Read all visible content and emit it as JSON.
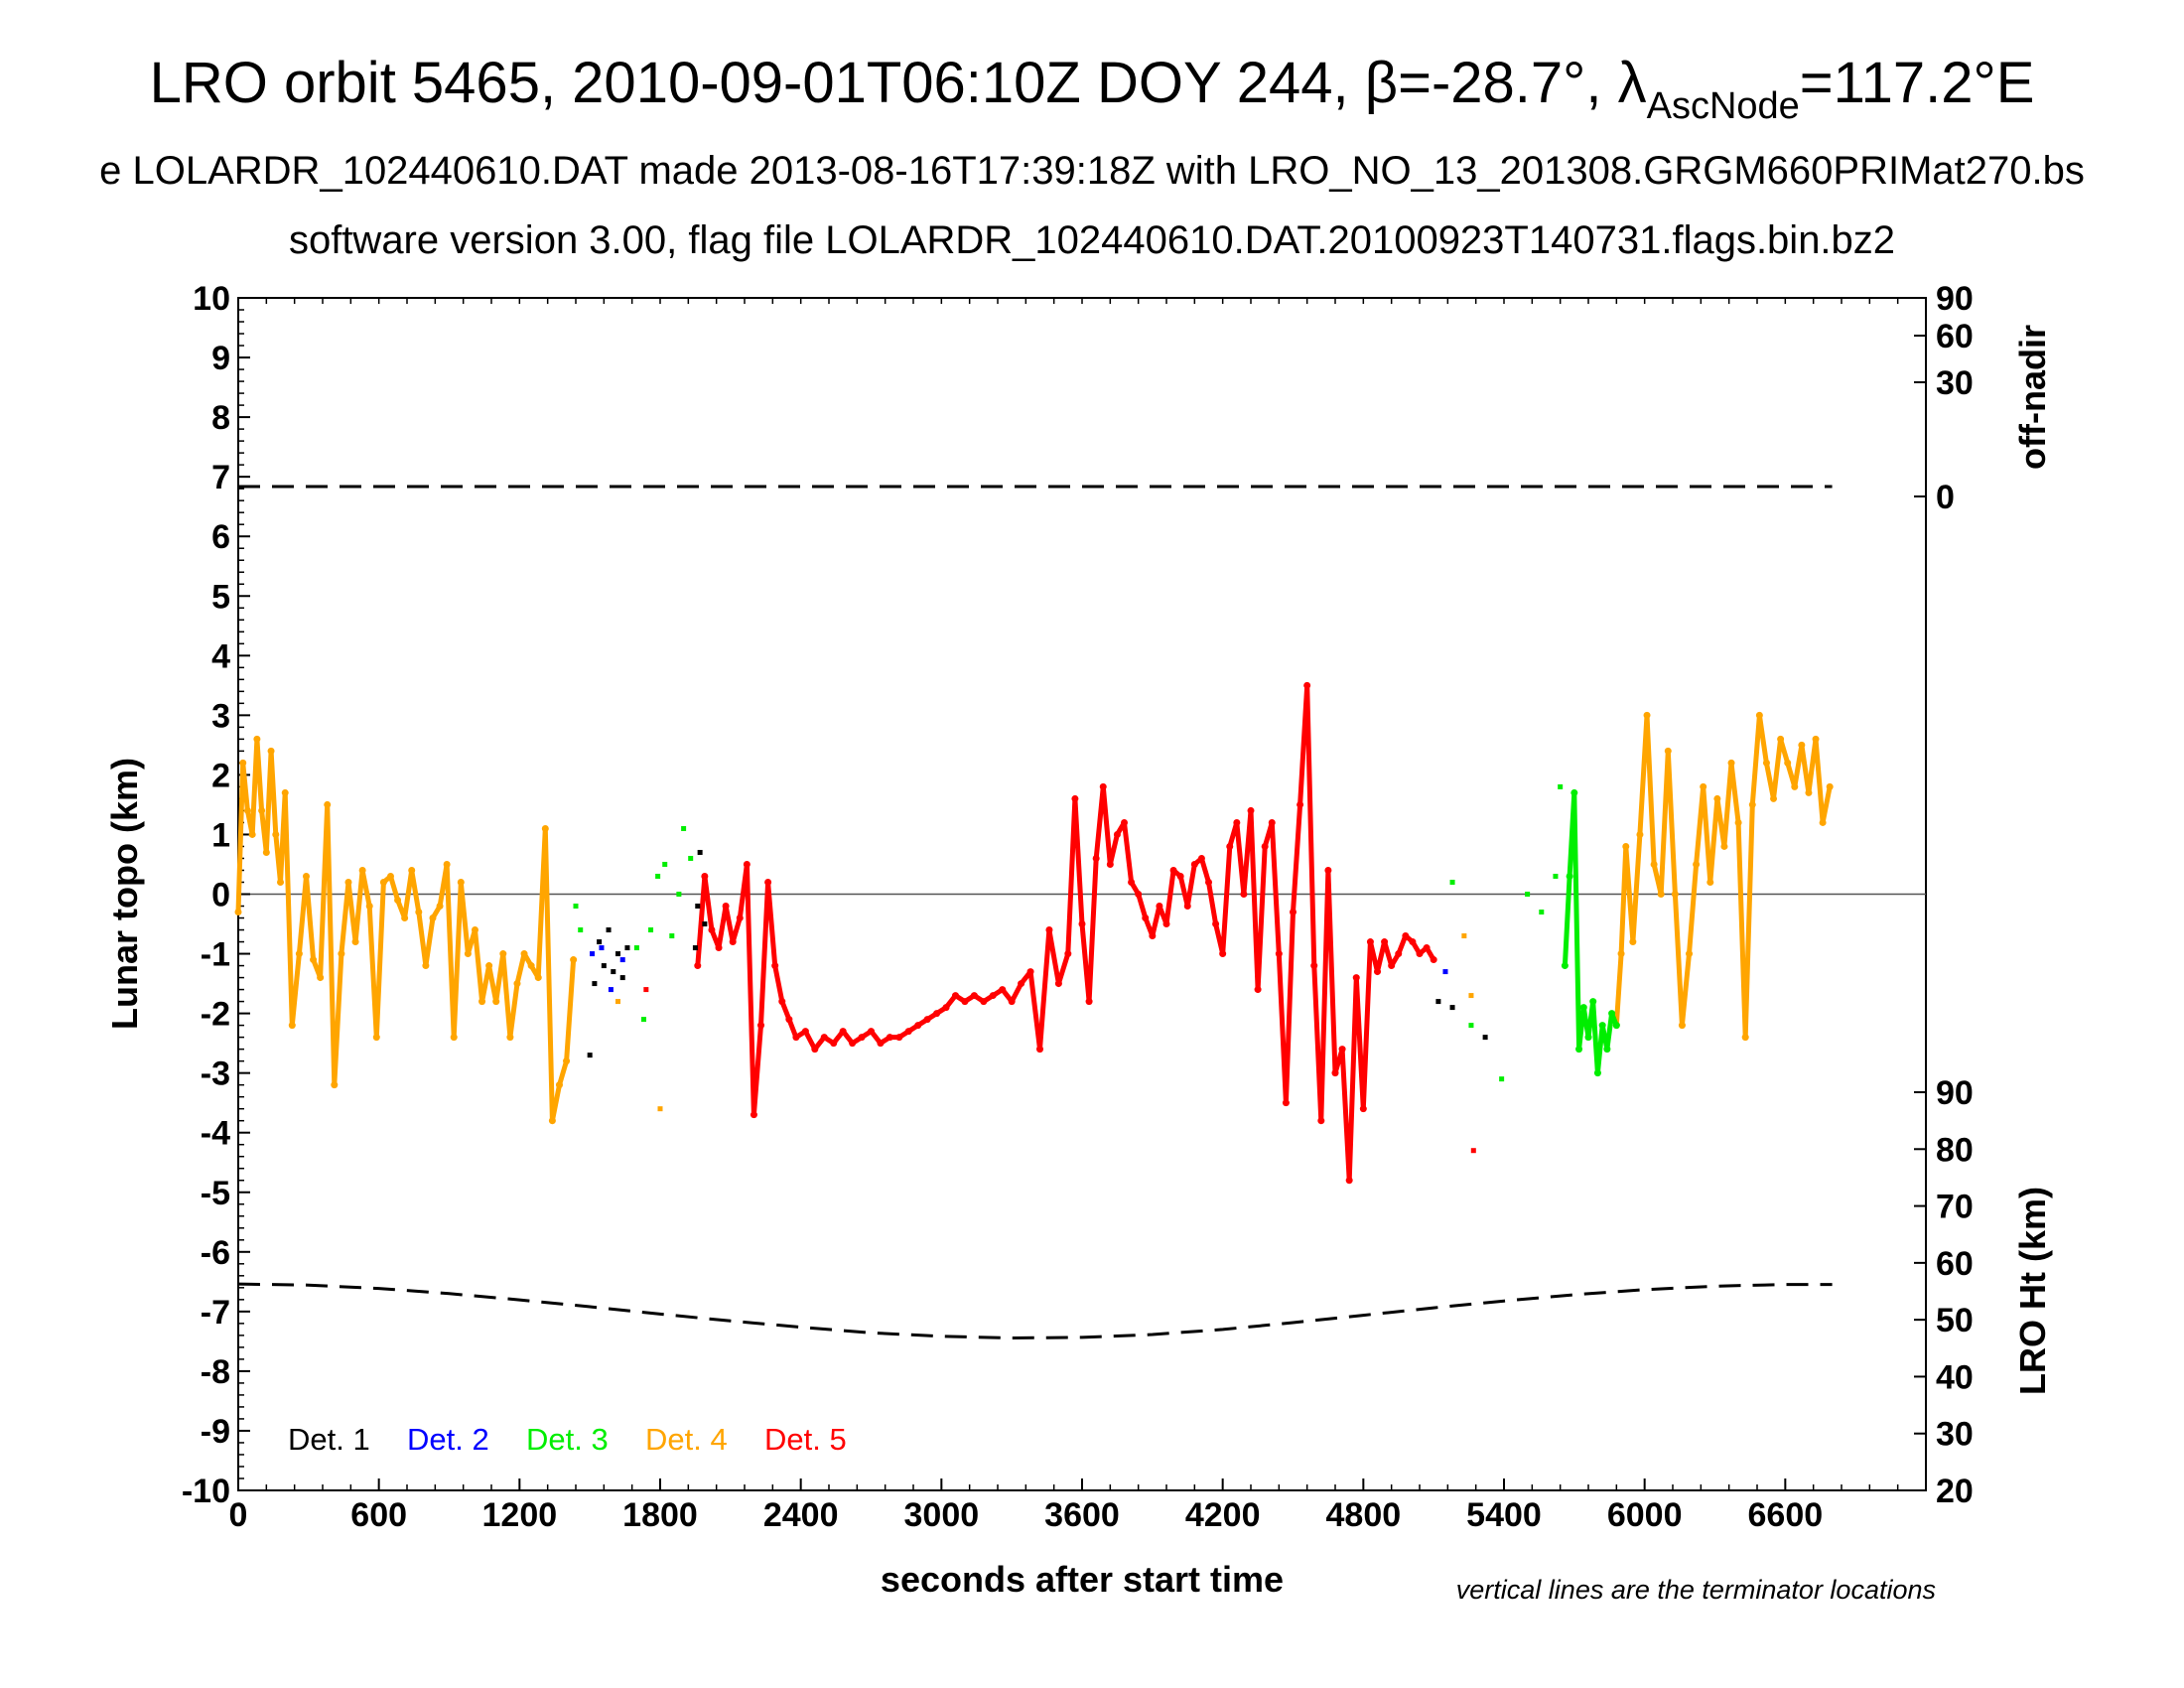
{
  "chart_data": {
    "type": "scatter",
    "title": {
      "main": "LRO orbit 5465, 2010-09-01T06:10Z DOY 244, β=-28.7°, λ",
      "lambda_subscript": "AscNode",
      "lambda_value": "=117.2°E"
    },
    "subtitle_line1": "e LOLARDR_102440610.DAT made 2013-08-16T17:39:18Z with LRO_NO_13_201308.GRGM660PRIMat270.bs",
    "subtitle_line2": "software version 3.00, flag file LOLARDR_102440610.DAT.20100923T140731.flags.bin.bz2",
    "xlabel": "seconds after start time",
    "ylabel": "Lunar topo (km)",
    "y2label_top": "off-nadir",
    "y2label_bottom": "LRO Ht (km)",
    "note": "vertical lines are the terminator locations",
    "xlim": [
      0,
      7200
    ],
    "ylim": [
      -10,
      10
    ],
    "x_ticks": [
      "0",
      "600",
      "1200",
      "1800",
      "2400",
      "3000",
      "3600",
      "4200",
      "4800",
      "5400",
      "6000",
      "6600"
    ],
    "y_ticks": [
      "10",
      "9",
      "8",
      "7",
      "6",
      "5",
      "4",
      "3",
      "2",
      "1",
      "0",
      "-1",
      "-2",
      "-3",
      "-4",
      "-5",
      "-6",
      "-7",
      "-8",
      "-9",
      "-10"
    ],
    "offnadir_ticks": [
      "90",
      "60",
      "30",
      "0"
    ],
    "offnadir_tick_values": [
      90,
      60,
      30,
      0
    ],
    "height_ticks": [
      "90",
      "80",
      "70",
      "60",
      "50",
      "40",
      "30",
      "20"
    ],
    "height_lim": [
      20,
      90
    ],
    "legend_position": "bottom-left",
    "legend": [
      {
        "label": "Det. 1",
        "color": "#000000"
      },
      {
        "label": "Det. 2",
        "color": "#0000ff"
      },
      {
        "label": "Det. 3",
        "color": "#00ee00"
      },
      {
        "label": "Det. 4",
        "color": "#ffa500"
      },
      {
        "label": "Det. 5",
        "color": "#ff0000"
      }
    ],
    "offnadir_series": {
      "x": [
        0,
        6800
      ],
      "values_deg": [
        0,
        0
      ]
    },
    "lro_height_series": {
      "x": [
        0,
        300,
        600,
        900,
        1200,
        1500,
        1800,
        2100,
        2400,
        2700,
        3000,
        3300,
        3600,
        3900,
        4200,
        4500,
        4800,
        5100,
        5400,
        5700,
        6000,
        6300,
        6600,
        6800
      ],
      "values_km": [
        56.3,
        56.1,
        55.5,
        54.6,
        53.5,
        52.3,
        51.0,
        49.8,
        48.7,
        47.7,
        47.1,
        46.8,
        46.9,
        47.4,
        48.3,
        49.5,
        50.8,
        52.1,
        53.3,
        54.4,
        55.3,
        55.9,
        56.2,
        56.2
      ]
    },
    "topo_series": [
      {
        "name": "Det. 4",
        "color": "#ffa500",
        "segments": [
          {
            "x": [
              0,
              20,
              40,
              60,
              80,
              100,
              120,
              140,
              160,
              180,
              200,
              230,
              260,
              290,
              320,
              350,
              380,
              410,
              440,
              470,
              500,
              530,
              560,
              590,
              620,
              650,
              680,
              710,
              740,
              770,
              800,
              830,
              860,
              890,
              920,
              950,
              980,
              1010,
              1040,
              1070,
              1100,
              1130,
              1160,
              1190,
              1220,
              1250,
              1280,
              1310,
              1340,
              1370,
              1400,
              1430
            ],
            "y": [
              -0.3,
              2.2,
              1.4,
              1.0,
              2.6,
              1.4,
              0.7,
              2.4,
              1.0,
              0.2,
              1.7,
              -2.2,
              -1.0,
              0.3,
              -1.1,
              -1.4,
              1.5,
              -3.2,
              -1.0,
              0.2,
              -0.8,
              0.4,
              -0.2,
              -2.4,
              0.2,
              0.3,
              -0.1,
              -0.4,
              0.4,
              -0.3,
              -1.2,
              -0.4,
              -0.2,
              0.5,
              -2.4,
              0.2,
              -1.0,
              -0.6,
              -1.8,
              -1.2,
              -1.8,
              -1.0,
              -2.4,
              -1.5,
              -1.0,
              -1.2,
              -1.4,
              1.1,
              -3.8,
              -3.2,
              -2.8,
              -1.1
            ]
          },
          {
            "x": [
              5880,
              5900,
              5920,
              5950,
              5980,
              6010,
              6040,
              6070,
              6100,
              6130,
              6160,
              6190,
              6220,
              6250,
              6280,
              6310,
              6340,
              6370,
              6400,
              6430,
              6460,
              6490,
              6520,
              6550,
              6580,
              6610,
              6640,
              6670,
              6700,
              6730,
              6760,
              6790
            ],
            "y": [
              -2.2,
              -1.0,
              0.8,
              -0.8,
              1.0,
              3.0,
              0.5,
              0.0,
              2.4,
              0.0,
              -2.2,
              -1.0,
              0.5,
              1.8,
              0.2,
              1.6,
              0.8,
              2.2,
              1.2,
              -2.4,
              1.5,
              3.0,
              2.2,
              1.6,
              2.6,
              2.2,
              1.8,
              2.5,
              1.7,
              2.6,
              1.2,
              1.8
            ]
          }
        ]
      },
      {
        "name": "Det. 5",
        "color": "#ff0000",
        "segments": [
          {
            "x": [
              1960,
              1990,
              2020,
              2050,
              2080,
              2110,
              2140,
              2170,
              2200,
              2230,
              2260,
              2290,
              2320,
              2350,
              2380,
              2420,
              2460,
              2500,
              2540,
              2580,
              2620,
              2660,
              2700,
              2740,
              2780,
              2820,
              2860,
              2900,
              2940,
              2980,
              3020,
              3060,
              3100,
              3140,
              3180,
              3220,
              3260,
              3300,
              3340,
              3380,
              3420,
              3460,
              3500,
              3540,
              3570,
              3600,
              3630,
              3660,
              3690,
              3720,
              3750,
              3780,
              3810,
              3840,
              3870,
              3900,
              3930,
              3960,
              3990,
              4020,
              4050,
              4080,
              4110,
              4140,
              4170,
              4200,
              4230,
              4260,
              4290,
              4320,
              4350,
              4380,
              4410,
              4440,
              4470,
              4500,
              4530,
              4560,
              4590,
              4620,
              4650,
              4680,
              4710,
              4740,
              4770,
              4800,
              4830,
              4860,
              4890,
              4920,
              4950,
              4980,
              5010,
              5040,
              5070,
              5100
            ],
            "y": [
              -1.2,
              0.3,
              -0.6,
              -0.9,
              -0.2,
              -0.8,
              -0.4,
              0.5,
              -3.7,
              -2.2,
              0.2,
              -1.2,
              -1.8,
              -2.1,
              -2.4,
              -2.3,
              -2.6,
              -2.4,
              -2.5,
              -2.3,
              -2.5,
              -2.4,
              -2.3,
              -2.5,
              -2.4,
              -2.4,
              -2.3,
              -2.2,
              -2.1,
              -2.0,
              -1.9,
              -1.7,
              -1.8,
              -1.7,
              -1.8,
              -1.7,
              -1.6,
              -1.8,
              -1.5,
              -1.3,
              -2.6,
              -0.6,
              -1.5,
              -1.0,
              1.6,
              -0.5,
              -1.8,
              0.6,
              1.8,
              0.5,
              1.0,
              1.2,
              0.2,
              0.0,
              -0.4,
              -0.7,
              -0.2,
              -0.5,
              0.4,
              0.3,
              -0.2,
              0.5,
              0.6,
              0.2,
              -0.5,
              -1.0,
              0.8,
              1.2,
              0.0,
              1.4,
              -1.6,
              0.8,
              1.2,
              -1.0,
              -3.5,
              -0.3,
              1.5,
              3.5,
              -1.2,
              -3.8,
              0.4,
              -3.0,
              -2.6,
              -4.8,
              -1.4,
              -3.6,
              -0.8,
              -1.3,
              -0.8,
              -1.2,
              -1.0,
              -0.7,
              -0.8,
              -1.0,
              -0.9,
              -1.1
            ]
          }
        ]
      },
      {
        "name": "Det. 3",
        "color": "#00ee00",
        "segments": [
          {
            "x": [
              5660,
              5680,
              5700,
              5720,
              5740,
              5760,
              5780,
              5800,
              5820,
              5840,
              5860,
              5880
            ],
            "y": [
              -1.2,
              0.3,
              1.7,
              -2.6,
              -1.9,
              -2.4,
              -1.8,
              -3.0,
              -2.2,
              -2.6,
              -2.0,
              -2.2
            ]
          }
        ]
      }
    ],
    "scatter_points": [
      {
        "name": "Det. 1",
        "color": "#000000",
        "x": [
          1500,
          1520,
          1540,
          1560,
          1580,
          1600,
          1620,
          1640,
          1660,
          1950,
          1960,
          1970,
          1990,
          5120,
          5180,
          5320
        ],
        "y": [
          -2.7,
          -1.5,
          -0.8,
          -1.2,
          -0.6,
          -1.3,
          -1.0,
          -1.4,
          -0.9,
          -0.9,
          -0.2,
          0.7,
          -0.5,
          -1.8,
          -1.9,
          -2.4
        ]
      },
      {
        "name": "Det. 2",
        "color": "#0000ff",
        "x": [
          1510,
          1550,
          1590,
          1640,
          5150
        ],
        "y": [
          -1.0,
          -0.9,
          -1.6,
          -1.1,
          -1.3
        ]
      },
      {
        "name": "Det. 3",
        "color": "#00ee00",
        "x": [
          1440,
          1460,
          1700,
          1730,
          1760,
          1790,
          1820,
          1850,
          1880,
          1900,
          1930,
          5180,
          5260,
          5390,
          5500,
          5560,
          5620,
          5640
        ],
        "y": [
          -0.2,
          -0.6,
          -0.9,
          -2.1,
          -0.6,
          0.3,
          0.5,
          -0.7,
          0.0,
          1.1,
          0.6,
          0.2,
          -2.2,
          -3.1,
          0.0,
          -0.3,
          0.3,
          1.8
        ]
      },
      {
        "name": "Det. 4",
        "color": "#ffa500",
        "x": [
          1620,
          1800,
          5230,
          5260
        ],
        "y": [
          -1.8,
          -3.6,
          -0.7,
          -1.7
        ]
      },
      {
        "name": "Det. 5",
        "color": "#ff0000",
        "x": [
          1740,
          5270
        ],
        "y": [
          -1.6,
          -4.3
        ]
      }
    ]
  }
}
